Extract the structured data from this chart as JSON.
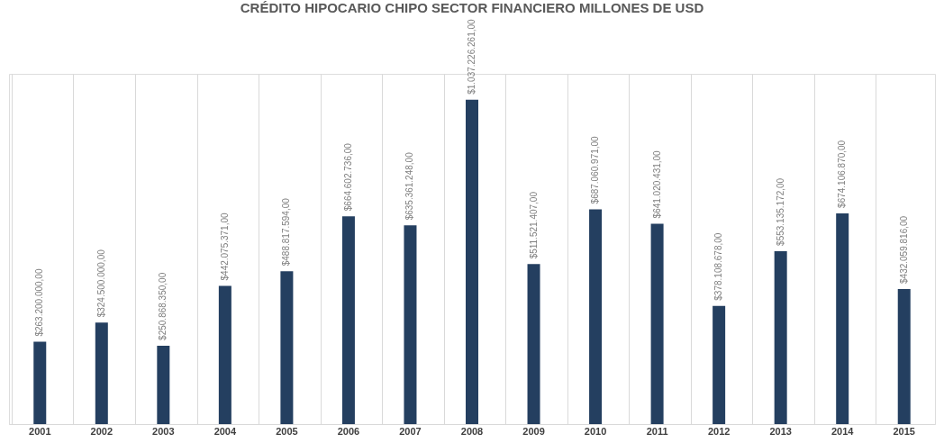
{
  "chart_data": {
    "type": "bar",
    "title": "CRÉDITO HIPOCARIO CHIPO SECTOR FINANCIERO MILLONES DE USD",
    "categories": [
      "2001",
      "2002",
      "2003",
      "2004",
      "2005",
      "2006",
      "2007",
      "2008",
      "2009",
      "2010",
      "2011",
      "2012",
      "2013",
      "2014",
      "2015"
    ],
    "values": [
      263200000,
      324500000,
      250868350,
      442075371,
      488817594,
      664602736,
      635361248,
      1037226261,
      511521407,
      687060971,
      641020431,
      378108678,
      553135172,
      674106870,
      432059816
    ],
    "value_labels": [
      "$263.200.000,00",
      "$324.500.000,00",
      "$250.868.350,00",
      "$442.075.371,00",
      "$488.817.594,00",
      "$664.602.736,00",
      "$635.361.248,00",
      "$1.037.226.261,00",
      "$511.521.407,00",
      "$687.060.971,00",
      "$641.020.431,00",
      "$378.108.678,00",
      "$553.135.172,00",
      "$674.106.870,00",
      "$432.059.816,00"
    ],
    "color": "#243f60",
    "grid": "x"
  }
}
